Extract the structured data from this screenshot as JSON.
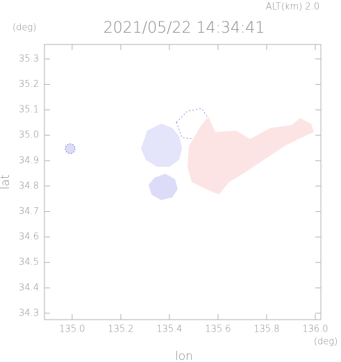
{
  "chart_data": {
    "type": "map",
    "annotation": "ALT(km) 2.0",
    "title": "2021/05/22 14:34:41",
    "y_unit": "(deg)",
    "x_unit": "(deg)",
    "xlabel": "lon",
    "ylabel": "lat",
    "xlim": [
      134.886,
      136.023
    ],
    "ylim": [
      34.275,
      35.357
    ],
    "xticks": [
      {
        "value": 135,
        "label": "135.0"
      },
      135.2,
      135.4,
      135.6,
      135.8,
      {
        "value": 136,
        "label": "136.0"
      }
    ],
    "yticks": [
      34.3,
      34.4,
      34.5,
      34.6,
      34.7,
      34.8,
      34.9,
      {
        "value": 35,
        "label": "35.0"
      },
      35.1,
      35.2,
      35.3
    ]
  }
}
